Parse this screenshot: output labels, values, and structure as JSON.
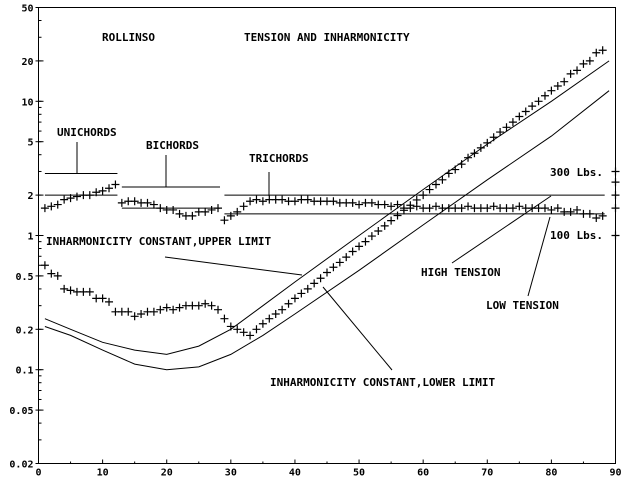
{
  "chart_data": {
    "type": "scatter",
    "title": "TENSION AND INHARMONICITY",
    "subtitle": "ROLLINSO",
    "xlabel": "",
    "ylabel": "",
    "xlim": [
      0,
      90
    ],
    "ylim": [
      0.02,
      50
    ],
    "yscale": "log",
    "x_ticks": [
      "0",
      "10",
      "20",
      "30",
      "40",
      "50",
      "60",
      "70",
      "80",
      "90"
    ],
    "y_ticks": [
      {
        "v": 50,
        "label": "50"
      },
      {
        "v": 20,
        "label": "20"
      },
      {
        "v": 10,
        "label": "10"
      },
      {
        "v": 5,
        "label": "5"
      },
      {
        "v": 2,
        "label": "2"
      },
      {
        "v": 1,
        "label": "1"
      },
      {
        "v": 0.5,
        "label": "0.5"
      },
      {
        "v": 0.2,
        "label": "0.2"
      },
      {
        "v": 0.1,
        "label": "0.1"
      },
      {
        "v": 0.05,
        "label": "0.05"
      },
      {
        "v": 0.02,
        "label": "0.02"
      }
    ],
    "grid": false,
    "series": [
      {
        "name": "tension",
        "marker": "plus",
        "x_start": 1,
        "values": [
          1.6,
          1.65,
          1.7,
          1.85,
          1.9,
          1.95,
          2.0,
          2.0,
          2.1,
          2.15,
          2.25,
          2.4,
          1.75,
          1.8,
          1.8,
          1.75,
          1.75,
          1.7,
          1.6,
          1.55,
          1.55,
          1.45,
          1.4,
          1.4,
          1.5,
          1.5,
          1.55,
          1.6,
          1.3,
          1.4,
          1.5,
          1.65,
          1.8,
          1.85,
          1.8,
          1.85,
          1.85,
          1.85,
          1.8,
          1.8,
          1.85,
          1.85,
          1.8,
          1.8,
          1.8,
          1.8,
          1.75,
          1.75,
          1.75,
          1.7,
          1.75,
          1.75,
          1.7,
          1.7,
          1.65,
          1.7,
          1.6,
          1.6,
          1.65,
          1.6,
          1.6,
          1.65,
          1.6,
          1.6,
          1.6,
          1.6,
          1.65,
          1.6,
          1.6,
          1.6,
          1.65,
          1.6,
          1.6,
          1.6,
          1.65,
          1.6,
          1.6,
          1.6,
          1.6,
          1.55,
          1.6,
          1.5,
          1.5,
          1.55,
          1.45,
          1.45,
          1.35,
          1.4
        ]
      },
      {
        "name": "inharmonicity",
        "marker": "plus",
        "x_start": 1,
        "values": [
          0.6,
          0.52,
          0.5,
          0.4,
          0.39,
          0.38,
          0.38,
          0.38,
          0.34,
          0.34,
          0.32,
          0.27,
          0.27,
          0.27,
          0.25,
          0.26,
          0.27,
          0.27,
          0.28,
          0.29,
          0.28,
          0.29,
          0.3,
          0.3,
          0.3,
          0.31,
          0.3,
          0.28,
          0.24,
          0.21,
          0.2,
          0.19,
          0.18,
          0.2,
          0.22,
          0.24,
          0.26,
          0.28,
          0.31,
          0.34,
          0.37,
          0.4,
          0.44,
          0.48,
          0.53,
          0.58,
          0.63,
          0.69,
          0.76,
          0.83,
          0.9,
          0.99,
          1.08,
          1.18,
          1.29,
          1.41,
          1.54,
          1.68,
          1.84,
          2.0,
          2.2,
          2.4,
          2.6,
          2.9,
          3.1,
          3.4,
          3.8,
          4.1,
          4.5,
          4.9,
          5.4,
          5.9,
          6.4,
          7.0,
          7.7,
          8.4,
          9.2,
          10,
          11,
          12,
          13,
          14,
          16,
          17,
          19,
          20,
          23,
          24
        ]
      },
      {
        "name": "inharmonicity constant, upper limit",
        "type": "line",
        "x": [
          1,
          5,
          10,
          15,
          20,
          25,
          30,
          35,
          40,
          50,
          60,
          70,
          80,
          89
        ],
        "values": [
          0.24,
          0.2,
          0.16,
          0.14,
          0.13,
          0.15,
          0.2,
          0.3,
          0.45,
          1.0,
          2.2,
          4.8,
          10,
          20
        ]
      },
      {
        "name": "inharmonicity constant, lower limit",
        "type": "line",
        "x": [
          1,
          5,
          10,
          15,
          20,
          25,
          30,
          35,
          40,
          50,
          60,
          70,
          80,
          89
        ],
        "values": [
          0.21,
          0.18,
          0.14,
          0.11,
          0.1,
          0.105,
          0.13,
          0.18,
          0.26,
          0.55,
          1.2,
          2.6,
          5.5,
          12
        ]
      }
    ],
    "reference_lines": [
      {
        "x": [
          1,
          12
        ],
        "y": 2.9
      },
      {
        "x": [
          1,
          12
        ],
        "y": 2.0
      },
      {
        "x": [
          13,
          28
        ],
        "y": 2.3
      },
      {
        "x": [
          13,
          28
        ],
        "y": 1.6
      },
      {
        "x": [
          29,
          88
        ],
        "y": 2.0
      },
      {
        "x": [
          29,
          88
        ],
        "y": 1.45
      }
    ],
    "edge_markers": [
      3.0,
      2.5,
      2.0,
      1.6,
      1.0
    ],
    "annotations": {
      "rollinso": "ROLLINSO",
      "title": "TENSION AND INHARMONICITY",
      "unichords": "UNICHORDS",
      "bichords": "BICHORDS",
      "trichords": "TRICHORDS",
      "lbs300": "300 Lbs.",
      "lbs100": "100 Lbs.",
      "upper_limit": "INHARMONICITY CONSTANT,UPPER LIMIT",
      "lower_limit": "INHARMONICITY CONSTANT,LOWER LIMIT",
      "high_tension": "HIGH TENSION",
      "low_tension": "LOW TENSION"
    }
  }
}
